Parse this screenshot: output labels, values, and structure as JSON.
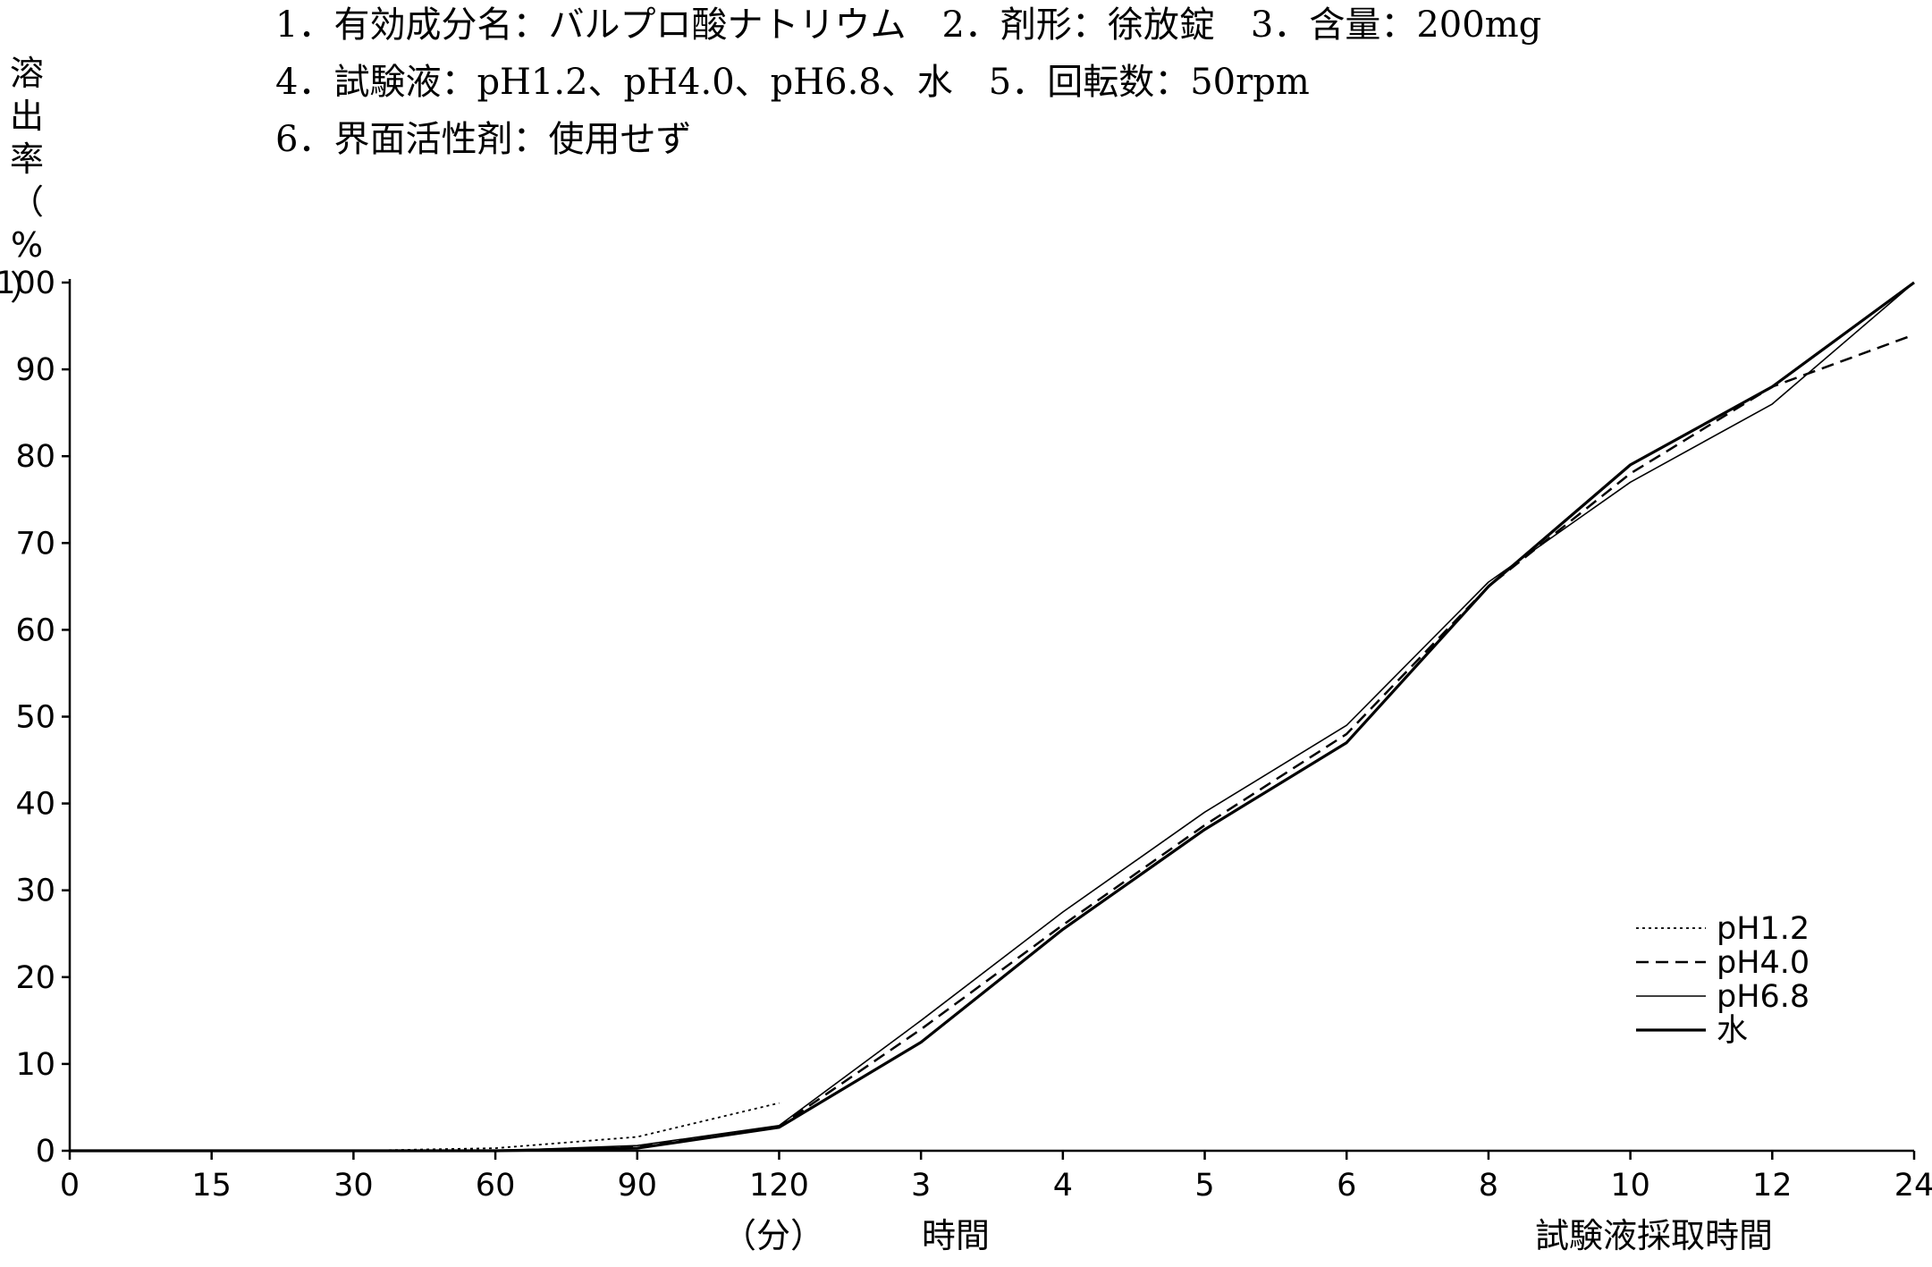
{
  "header": {
    "line1": "1．有効成分名：バルプロ酸ナトリウム　2．剤形：徐放錠　3．含量：200mg",
    "line2": "4．試験液：pH1.2、pH4.0、pH6.8、水　5．回転数：50rpm",
    "line3": "6．界面活性剤：使用せず"
  },
  "chart_data": {
    "type": "line",
    "title": "",
    "ylabel": "溶出率(%)",
    "ylabel_chars": [
      "溶",
      "出",
      "率",
      "（",
      "%",
      "）"
    ],
    "xlabel_minutes": "（分）",
    "xlabel_hours": "時間",
    "xlabel_sampling": "試験液採取時間",
    "x": [
      "0",
      "15",
      "30",
      "60",
      "90",
      "120",
      "3",
      "4",
      "5",
      "6",
      "8",
      "10",
      "12",
      "24"
    ],
    "y_ticks": [
      0,
      10,
      20,
      30,
      40,
      50,
      60,
      70,
      80,
      90,
      100
    ],
    "ylim": [
      0,
      100
    ],
    "grid": false,
    "legend_position": "bottom-right",
    "series": [
      {
        "name": "pH1.2",
        "style": "dotted",
        "values": [
          0,
          0,
          0,
          0.3,
          1.6,
          5.5,
          null,
          null,
          null,
          null,
          null,
          null,
          null,
          null
        ]
      },
      {
        "name": "pH4.0",
        "style": "dashed",
        "values": [
          0,
          0,
          0,
          0,
          0.4,
          2.8,
          14,
          26,
          37.5,
          48,
          65,
          78,
          88,
          94
        ]
      },
      {
        "name": "pH6.8",
        "style": "thin",
        "values": [
          0,
          0,
          0,
          0,
          0.6,
          2.9,
          15,
          27.5,
          39,
          49,
          65.5,
          77,
          86,
          100
        ]
      },
      {
        "name": "水",
        "style": "thick",
        "values": [
          0,
          0,
          0,
          0,
          0.3,
          2.7,
          12.5,
          25.5,
          37,
          47,
          65,
          79,
          88,
          100
        ]
      }
    ]
  }
}
